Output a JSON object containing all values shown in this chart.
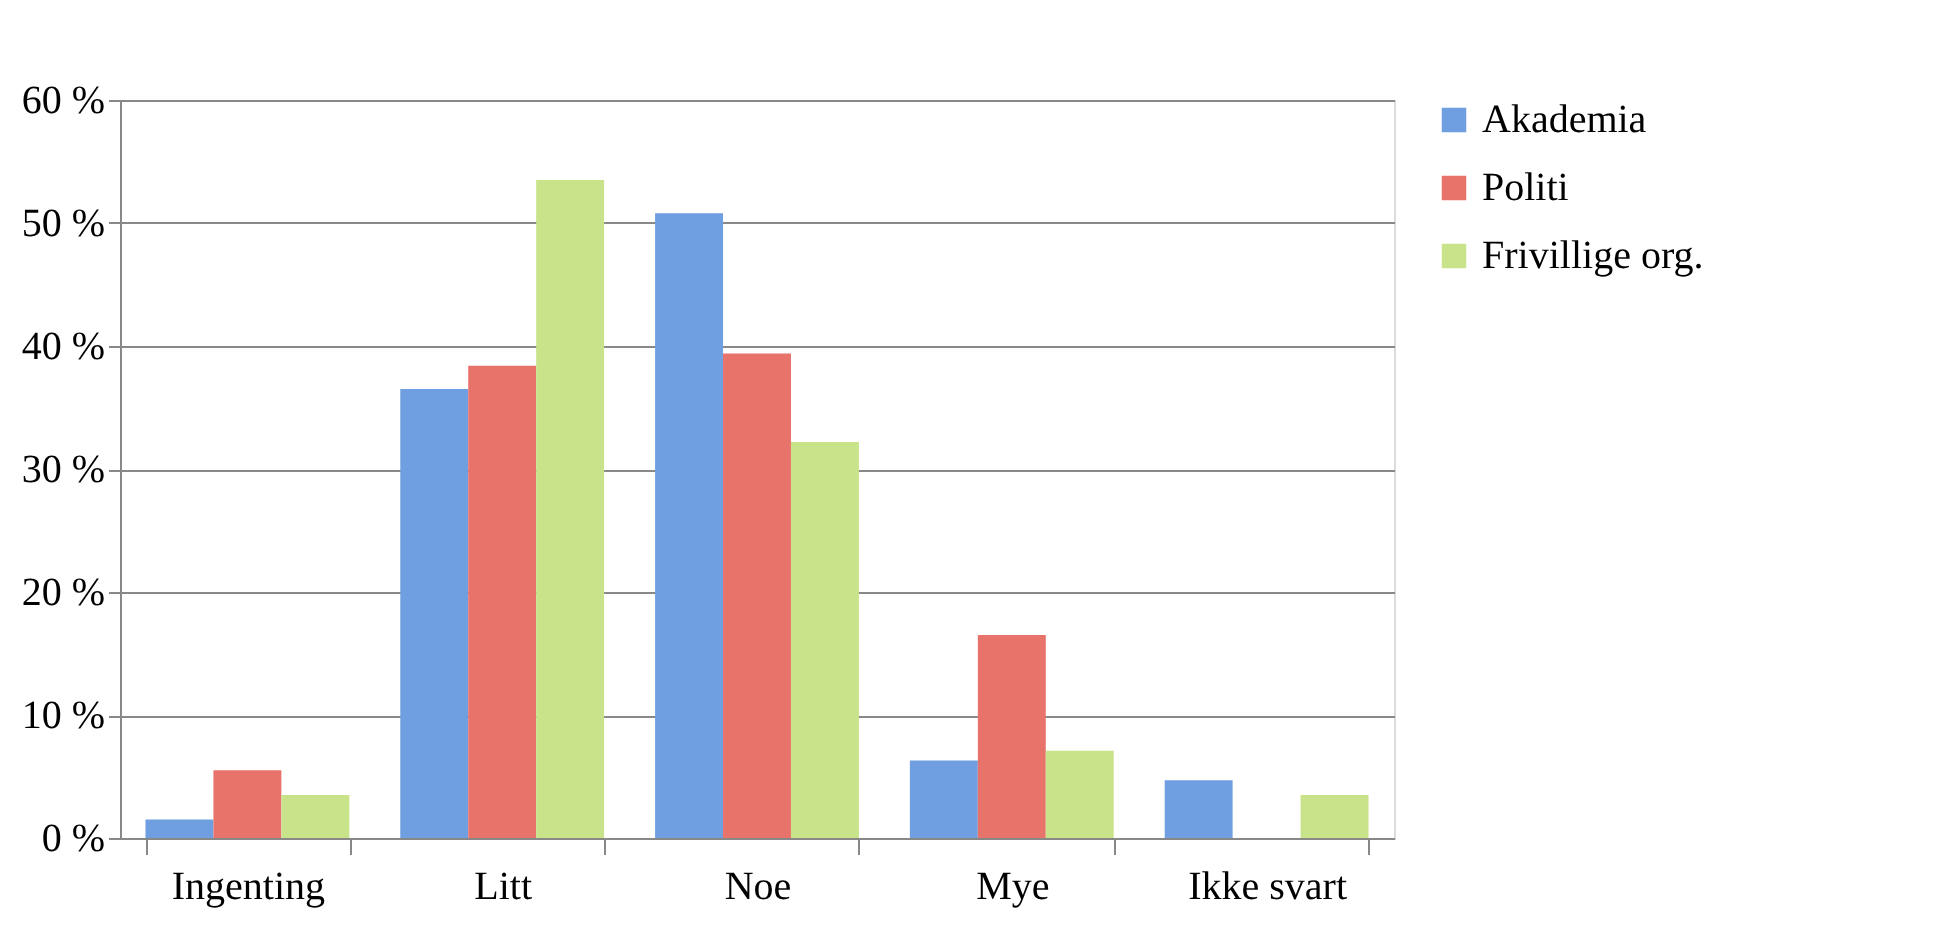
{
  "chart_data": {
    "type": "bar",
    "categories": [
      "Ingenting",
      "Litt",
      "Noe",
      "Mye",
      "Ikke svart"
    ],
    "series": [
      {
        "name": "Akademia",
        "color": "#6f9fe0",
        "values": [
          1.5,
          36.5,
          50.8,
          6.3,
          4.7
        ]
      },
      {
        "name": "Politi",
        "color": "#e8736b",
        "values": [
          5.5,
          38.4,
          39.4,
          16.5,
          0
        ]
      },
      {
        "name": "Frivillige org.",
        "color": "#c8e38a",
        "values": [
          3.5,
          53.5,
          32.2,
          7.1,
          3.5
        ]
      }
    ],
    "ylim": [
      0,
      60
    ],
    "yticks": [
      {
        "value": 0,
        "label": "0 %"
      },
      {
        "value": 10,
        "label": "10 %"
      },
      {
        "value": 20,
        "label": "20 %"
      },
      {
        "value": 30,
        "label": "30 %"
      },
      {
        "value": 40,
        "label": "40 %"
      },
      {
        "value": 50,
        "label": "50 %"
      },
      {
        "value": 60,
        "label": "60 %"
      }
    ],
    "grid": "y",
    "legend": "right"
  }
}
